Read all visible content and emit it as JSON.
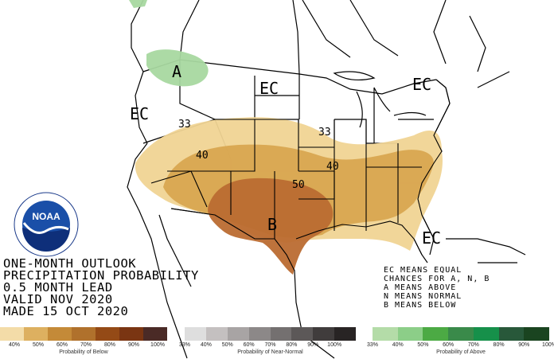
{
  "map": {
    "labels": {
      "ec_northwest": "EC",
      "ec_north": "EC",
      "ec_northeast": "EC",
      "ec_florida": "EC",
      "above": "A",
      "below": "B",
      "c33_west": "33",
      "c33_east": "33",
      "c40_west": "40",
      "c40_east": "40",
      "c50": "50"
    },
    "colors": {
      "below_33": "#f0d493",
      "below_40": "#d8a750",
      "below_50": "#bb6b32",
      "above_33": "#a8d8a0",
      "land": "#ffffff",
      "boundary": "#000000"
    }
  },
  "outlook": {
    "line1": "ONE-MONTH OUTLOOK",
    "line2": "PRECIPITATION PROBABILITY",
    "line3": "0.5 MONTH LEAD",
    "line4": "VALID NOV 2020",
    "line5": "MADE 15 OCT 2020"
  },
  "key": {
    "line1": "EC MEANS EQUAL",
    "line2": "CHANCES FOR A, N, B",
    "line3": "A MEANS ABOVE",
    "line4": "N MEANS NORMAL",
    "line5": "B MEANS BELOW"
  },
  "logo": {
    "text": "NOAA",
    "icon": "noaa-logo-icon"
  },
  "legend": {
    "below": {
      "title": "Probability of Below",
      "ticks": [
        "40%",
        "50%",
        "60%",
        "70%",
        "80%",
        "90%",
        "100%"
      ],
      "colors": [
        "#f3dca8",
        "#ddb060",
        "#c48a38",
        "#b0712c",
        "#944a16",
        "#7a3512",
        "#4a2a26"
      ]
    },
    "normal": {
      "title": "Probability of Near-Normal",
      "ticks": [
        "33%",
        "40%",
        "50%",
        "60%",
        "70%",
        "80%",
        "90%",
        "100%"
      ],
      "colors": [
        "#dedede",
        "#c4c0c0",
        "#a8a4a4",
        "#8c8888",
        "#747070",
        "#5c5858",
        "#403c3c",
        "#282424"
      ]
    },
    "above": {
      "title": "Probability of Above",
      "ticks": [
        "33%",
        "40%",
        "50%",
        "60%",
        "70%",
        "80%",
        "90%",
        "100%"
      ],
      "colors": [
        "#b4dca8",
        "#8cce88",
        "#4caa44",
        "#3a8a4a",
        "#16904a",
        "#28583a",
        "#1a4420"
      ]
    }
  }
}
